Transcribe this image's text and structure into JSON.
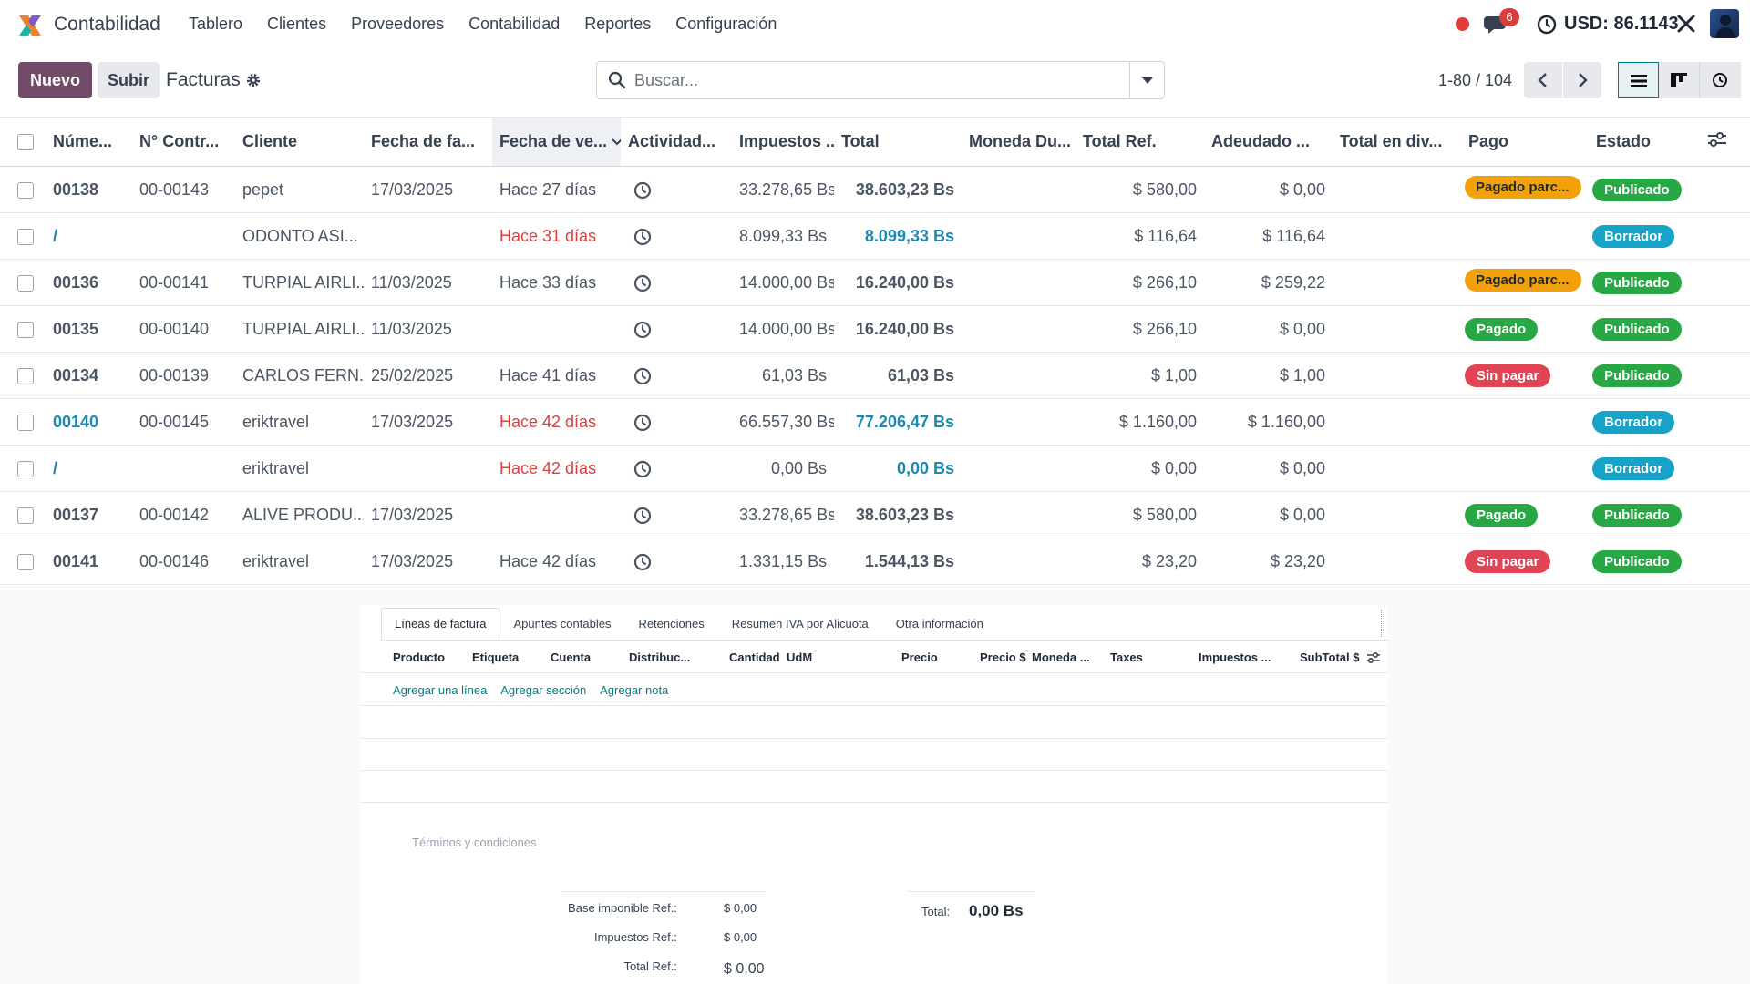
{
  "app": {
    "name": "Contabilidad"
  },
  "nav": {
    "items": [
      "Tablero",
      "Clientes",
      "Proveedores",
      "Contabilidad",
      "Reportes",
      "Configuración"
    ],
    "chat_badge": "6",
    "usd_rate": "USD: 86.1143"
  },
  "control": {
    "new_label": "Nuevo",
    "upload_label": "Subir",
    "title": "Facturas",
    "search_placeholder": "Buscar...",
    "pager": "1-80 / 104"
  },
  "table": {
    "headers": [
      "Núme...",
      "N° Contr...",
      "Cliente",
      "Fecha de fa...",
      "Fecha de ve...",
      "Actividad...",
      "Impuestos ...",
      "Total",
      "Moneda Du...",
      "Total Ref.",
      "Adeudado ...",
      "Total en div...",
      "Pago",
      "Estado"
    ],
    "rows": [
      {
        "numero": "00138",
        "control": "00-00143",
        "cliente": "pepet",
        "fecha": "17/03/2025",
        "vence": "Hace 27 días",
        "impuestos": "33.278,65 Bs",
        "total": "38.603,23 Bs",
        "total_ref": "$ 580,00",
        "adeudado": "$ 0,00",
        "pago": "Pagado parc...",
        "estado": "Publicado",
        "draft": false
      },
      {
        "numero": "/",
        "control": "",
        "cliente": "ODONTO ASI...",
        "fecha": "",
        "vence": "Hace 31 días",
        "impuestos": "8.099,33 Bs",
        "total": "8.099,33 Bs",
        "total_ref": "$ 116,64",
        "adeudado": "$ 116,64",
        "pago": "",
        "estado": "Borrador",
        "draft": true
      },
      {
        "numero": "00136",
        "control": "00-00141",
        "cliente": "TURPIAL AIRLI...",
        "fecha": "11/03/2025",
        "vence": "Hace 33 días",
        "impuestos": "14.000,00 Bs",
        "total": "16.240,00 Bs",
        "total_ref": "$ 266,10",
        "adeudado": "$ 259,22",
        "pago": "Pagado parc...",
        "estado": "Publicado",
        "draft": false
      },
      {
        "numero": "00135",
        "control": "00-00140",
        "cliente": "TURPIAL AIRLI...",
        "fecha": "11/03/2025",
        "vence": "",
        "impuestos": "14.000,00 Bs",
        "total": "16.240,00 Bs",
        "total_ref": "$ 266,10",
        "adeudado": "$ 0,00",
        "pago": "Pagado",
        "estado": "Publicado",
        "draft": false
      },
      {
        "numero": "00134",
        "control": "00-00139",
        "cliente": "CARLOS FERN...",
        "fecha": "25/02/2025",
        "vence": "Hace 41 días",
        "impuestos": "61,03 Bs",
        "total": "61,03 Bs",
        "total_ref": "$ 1,00",
        "adeudado": "$ 1,00",
        "pago": "Sin pagar",
        "estado": "Publicado",
        "draft": false
      },
      {
        "numero": "00140",
        "control": "00-00145",
        "cliente": "eriktravel",
        "fecha": "17/03/2025",
        "vence": "Hace 42 días",
        "impuestos": "66.557,30 Bs",
        "total": "77.206,47 Bs",
        "total_ref": "$ 1.160,00",
        "adeudado": "$ 1.160,00",
        "pago": "",
        "estado": "Borrador",
        "draft": true
      },
      {
        "numero": "/",
        "control": "",
        "cliente": "eriktravel",
        "fecha": "",
        "vence": "Hace 42 días",
        "impuestos": "0,00 Bs",
        "total": "0,00 Bs",
        "total_ref": "$ 0,00",
        "adeudado": "$ 0,00",
        "pago": "",
        "estado": "Borrador",
        "draft": true
      },
      {
        "numero": "00137",
        "control": "00-00142",
        "cliente": "ALIVE PRODU...",
        "fecha": "17/03/2025",
        "vence": "",
        "impuestos": "33.278,65 Bs",
        "total": "38.603,23 Bs",
        "total_ref": "$ 580,00",
        "adeudado": "$ 0,00",
        "pago": "Pagado",
        "estado": "Publicado",
        "draft": false
      },
      {
        "numero": "00141",
        "control": "00-00146",
        "cliente": "eriktravel",
        "fecha": "17/03/2025",
        "vence": "Hace 42 días",
        "impuestos": "1.331,15 Bs",
        "total": "1.544,13 Bs",
        "total_ref": "$ 23,20",
        "adeudado": "$ 23,20",
        "pago": "Sin pagar",
        "estado": "Publicado",
        "draft": false
      }
    ]
  },
  "form": {
    "tabs": [
      "Líneas de factura",
      "Apuntes contables",
      "Retenciones",
      "Resumen IVA por Alicuota",
      "Otra información"
    ],
    "line_headers": [
      "Producto",
      "Etiqueta",
      "Cuenta",
      "Distribuc...",
      "Cantidad",
      "UdM",
      "Precio",
      "Precio $",
      "Moneda ...",
      "Taxes",
      "Impuestos ...",
      "SubTotal $"
    ],
    "add_links": [
      "Agregar una línea",
      "Agregar sección",
      "Agregar nota"
    ],
    "terms_placeholder": "Términos y condiciones",
    "ref_totals": [
      {
        "label": "Base imponible Ref.:",
        "value": "$ 0,00"
      },
      {
        "label": "Impuestos Ref.:",
        "value": "$ 0,00"
      },
      {
        "label": "Total Ref.:",
        "value": "$ 0,00"
      }
    ],
    "total_label": "Total:",
    "total_value": "0,00 Bs"
  },
  "colors": {
    "brand": "#714b67",
    "accent": "#017e84",
    "overdue": "#d94141",
    "draft_text": "#1b8ab0",
    "paid": "#28a745",
    "unpaid": "#e04455",
    "partial": "#f3a10a",
    "draft_badge": "#17a2c8"
  }
}
